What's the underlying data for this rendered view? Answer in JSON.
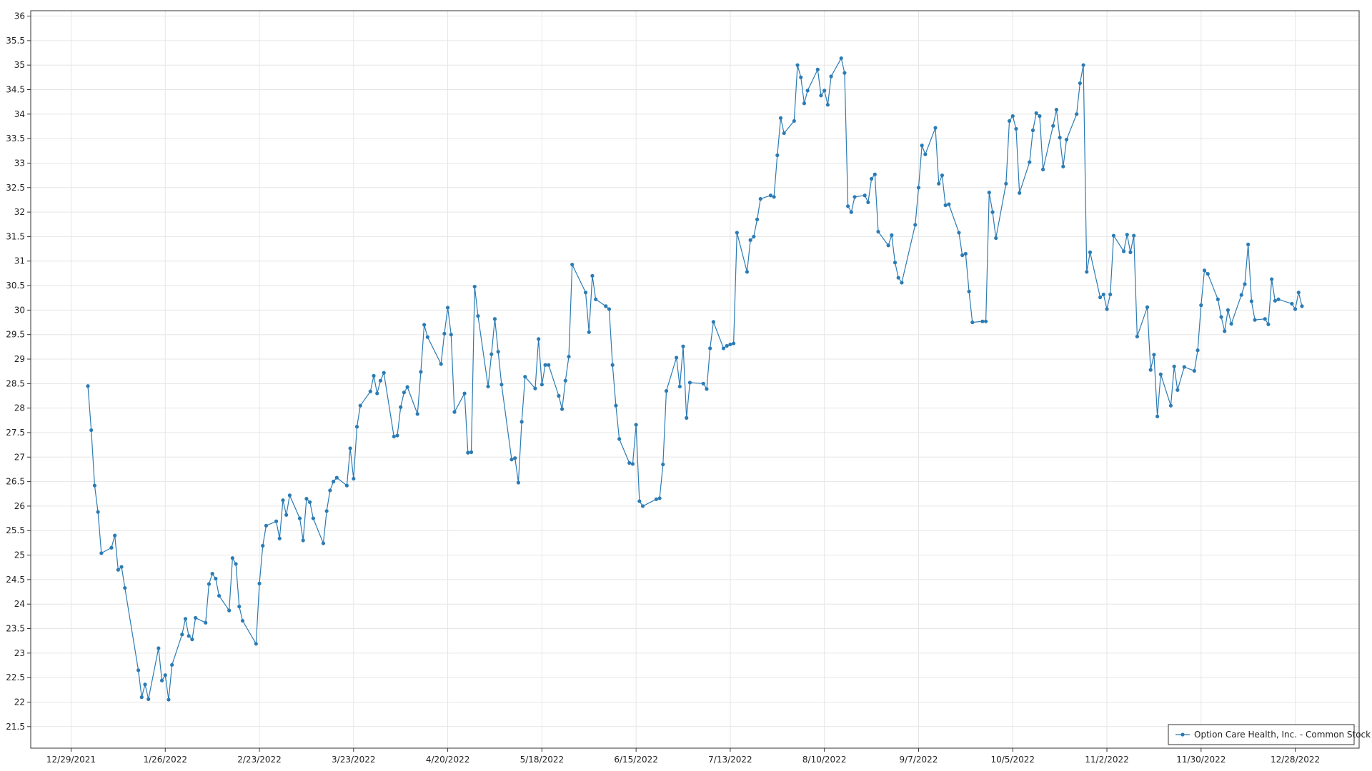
{
  "chart_data": {
    "type": "line",
    "x": [
      "2022-01-03",
      "2022-01-04",
      "2022-01-05",
      "2022-01-06",
      "2022-01-07",
      "2022-01-10",
      "2022-01-11",
      "2022-01-12",
      "2022-01-13",
      "2022-01-14",
      "2022-01-18",
      "2022-01-19",
      "2022-01-20",
      "2022-01-21",
      "2022-01-24",
      "2022-01-25",
      "2022-01-26",
      "2022-01-27",
      "2022-01-28",
      "2022-01-31",
      "2022-02-01",
      "2022-02-02",
      "2022-02-03",
      "2022-02-04",
      "2022-02-07",
      "2022-02-08",
      "2022-02-09",
      "2022-02-10",
      "2022-02-11",
      "2022-02-14",
      "2022-02-15",
      "2022-02-16",
      "2022-02-17",
      "2022-02-18",
      "2022-02-22",
      "2022-02-23",
      "2022-02-24",
      "2022-02-25",
      "2022-02-28",
      "2022-03-01",
      "2022-03-02",
      "2022-03-03",
      "2022-03-04",
      "2022-03-07",
      "2022-03-08",
      "2022-03-09",
      "2022-03-10",
      "2022-03-11",
      "2022-03-14",
      "2022-03-15",
      "2022-03-16",
      "2022-03-17",
      "2022-03-18",
      "2022-03-21",
      "2022-03-22",
      "2022-03-23",
      "2022-03-24",
      "2022-03-25",
      "2022-03-28",
      "2022-03-29",
      "2022-03-30",
      "2022-03-31",
      "2022-04-01",
      "2022-04-04",
      "2022-04-05",
      "2022-04-06",
      "2022-04-07",
      "2022-04-08",
      "2022-04-11",
      "2022-04-12",
      "2022-04-13",
      "2022-04-14",
      "2022-04-18",
      "2022-04-19",
      "2022-04-20",
      "2022-04-21",
      "2022-04-22",
      "2022-04-25",
      "2022-04-26",
      "2022-04-27",
      "2022-04-28",
      "2022-04-29",
      "2022-05-02",
      "2022-05-03",
      "2022-05-04",
      "2022-05-05",
      "2022-05-06",
      "2022-05-09",
      "2022-05-10",
      "2022-05-11",
      "2022-05-12",
      "2022-05-13",
      "2022-05-16",
      "2022-05-17",
      "2022-05-18",
      "2022-05-19",
      "2022-05-20",
      "2022-05-23",
      "2022-05-24",
      "2022-05-25",
      "2022-05-26",
      "2022-05-27",
      "2022-05-31",
      "2022-06-01",
      "2022-06-02",
      "2022-06-03",
      "2022-06-06",
      "2022-06-07",
      "2022-06-08",
      "2022-06-09",
      "2022-06-10",
      "2022-06-13",
      "2022-06-14",
      "2022-06-15",
      "2022-06-16",
      "2022-06-17",
      "2022-06-21",
      "2022-06-22",
      "2022-06-23",
      "2022-06-24",
      "2022-06-27",
      "2022-06-28",
      "2022-06-29",
      "2022-06-30",
      "2022-07-01",
      "2022-07-05",
      "2022-07-06",
      "2022-07-07",
      "2022-07-08",
      "2022-07-11",
      "2022-07-12",
      "2022-07-13",
      "2022-07-14",
      "2022-07-15",
      "2022-07-18",
      "2022-07-19",
      "2022-07-20",
      "2022-07-21",
      "2022-07-22",
      "2022-07-25",
      "2022-07-26",
      "2022-07-27",
      "2022-07-28",
      "2022-07-29",
      "2022-08-01",
      "2022-08-02",
      "2022-08-03",
      "2022-08-04",
      "2022-08-05",
      "2022-08-08",
      "2022-08-09",
      "2022-08-10",
      "2022-08-11",
      "2022-08-12",
      "2022-08-15",
      "2022-08-16",
      "2022-08-17",
      "2022-08-18",
      "2022-08-19",
      "2022-08-22",
      "2022-08-23",
      "2022-08-24",
      "2022-08-25",
      "2022-08-26",
      "2022-08-29",
      "2022-08-30",
      "2022-08-31",
      "2022-09-01",
      "2022-09-02",
      "2022-09-06",
      "2022-09-07",
      "2022-09-08",
      "2022-09-09",
      "2022-09-12",
      "2022-09-13",
      "2022-09-14",
      "2022-09-15",
      "2022-09-16",
      "2022-09-19",
      "2022-09-20",
      "2022-09-21",
      "2022-09-22",
      "2022-09-23",
      "2022-09-26",
      "2022-09-27",
      "2022-09-28",
      "2022-09-29",
      "2022-09-30",
      "2022-10-03",
      "2022-10-04",
      "2022-10-05",
      "2022-10-06",
      "2022-10-07",
      "2022-10-10",
      "2022-10-11",
      "2022-10-12",
      "2022-10-13",
      "2022-10-14",
      "2022-10-17",
      "2022-10-18",
      "2022-10-19",
      "2022-10-20",
      "2022-10-21",
      "2022-10-24",
      "2022-10-25",
      "2022-10-26",
      "2022-10-27",
      "2022-10-28",
      "2022-10-31",
      "2022-11-01",
      "2022-11-02",
      "2022-11-03",
      "2022-11-04",
      "2022-11-07",
      "2022-11-08",
      "2022-11-09",
      "2022-11-10",
      "2022-11-11",
      "2022-11-14",
      "2022-11-15",
      "2022-11-16",
      "2022-11-17",
      "2022-11-18",
      "2022-11-21",
      "2022-11-22",
      "2022-11-23",
      "2022-11-25",
      "2022-11-28",
      "2022-11-29",
      "2022-11-30",
      "2022-12-01",
      "2022-12-02",
      "2022-12-05",
      "2022-12-06",
      "2022-12-07",
      "2022-12-08",
      "2022-12-09",
      "2022-12-12",
      "2022-12-13",
      "2022-12-14",
      "2022-12-15",
      "2022-12-16",
      "2022-12-19",
      "2022-12-20",
      "2022-12-21",
      "2022-12-22",
      "2022-12-23",
      "2022-12-27",
      "2022-12-28",
      "2022-12-29",
      "2022-12-30"
    ],
    "series": [
      {
        "name": "Option Care Health, Inc. - Common Stock",
        "color": "#2b7bb4",
        "values": [
          28.45,
          27.55,
          26.42,
          25.88,
          25.04,
          25.15,
          25.4,
          24.7,
          24.76,
          24.33,
          22.65,
          22.1,
          22.36,
          22.06,
          23.1,
          22.44,
          22.55,
          22.05,
          22.76,
          23.38,
          23.7,
          23.35,
          23.28,
          23.72,
          23.62,
          24.41,
          24.62,
          24.52,
          24.17,
          23.87,
          24.94,
          24.82,
          23.95,
          23.66,
          23.19,
          24.42,
          25.19,
          25.6,
          25.69,
          25.34,
          26.12,
          25.82,
          26.22,
          25.75,
          25.3,
          26.15,
          26.08,
          25.75,
          25.24,
          25.9,
          26.32,
          26.5,
          26.58,
          26.42,
          27.18,
          26.56,
          27.62,
          28.05,
          28.34,
          28.66,
          28.3,
          28.56,
          28.72,
          27.42,
          27.44,
          28.02,
          28.32,
          28.43,
          27.88,
          28.74,
          29.7,
          29.45,
          28.9,
          29.52,
          30.05,
          29.5,
          27.92,
          28.3,
          27.09,
          27.1,
          30.48,
          29.88,
          28.44,
          29.1,
          29.82,
          29.15,
          28.48,
          26.95,
          26.98,
          26.48,
          27.72,
          28.64,
          28.4,
          29.41,
          28.48,
          28.88,
          28.88,
          28.25,
          27.98,
          28.56,
          29.05,
          30.93,
          30.36,
          29.55,
          30.7,
          30.22,
          30.08,
          30.02,
          28.88,
          28.05,
          27.37,
          26.88,
          26.86,
          27.66,
          26.1,
          26.0,
          26.14,
          26.16,
          26.85,
          28.35,
          29.03,
          28.44,
          29.26,
          27.8,
          28.52,
          28.5,
          28.39,
          29.22,
          29.76,
          29.22,
          29.27,
          29.3,
          29.32,
          31.58,
          30.78,
          31.43,
          31.5,
          31.85,
          32.27,
          32.34,
          32.31,
          33.16,
          33.92,
          33.61,
          33.86,
          35.0,
          34.75,
          34.22,
          34.48,
          34.91,
          34.38,
          34.48,
          34.19,
          34.77,
          35.14,
          34.84,
          32.12,
          32.0,
          32.31,
          32.34,
          32.2,
          32.68,
          32.77,
          31.6,
          31.32,
          31.53,
          30.97,
          30.66,
          30.56,
          31.74,
          32.5,
          33.36,
          33.18,
          33.72,
          32.58,
          32.75,
          32.14,
          32.16,
          31.58,
          31.12,
          31.15,
          30.38,
          29.75,
          29.77,
          29.77,
          32.4,
          32.0,
          31.47,
          32.58,
          33.86,
          33.96,
          33.7,
          32.39,
          33.02,
          33.67,
          34.02,
          33.96,
          32.87,
          33.76,
          34.09,
          33.52,
          32.93,
          33.48,
          34.0,
          34.63,
          35.0,
          30.78,
          31.18,
          30.26,
          30.32,
          30.02,
          30.32,
          31.52,
          31.2,
          31.54,
          31.18,
          31.52,
          29.46,
          30.06,
          28.78,
          29.09,
          27.83,
          28.69,
          28.05,
          28.85,
          28.37,
          28.84,
          28.76,
          29.18,
          30.1,
          30.81,
          30.74,
          30.22,
          29.86,
          29.57,
          30.0,
          29.72,
          30.31,
          30.53,
          31.34,
          30.18,
          29.8,
          29.82,
          29.71,
          30.63,
          30.19,
          30.22,
          30.13,
          30.02,
          30.36,
          30.08
        ]
      }
    ],
    "xlim": [
      "2021-12-17",
      "2023-01-16"
    ],
    "xticks": [
      {
        "value": "2021-12-29",
        "label": "12/29/2021"
      },
      {
        "value": "2022-01-26",
        "label": "1/26/2022"
      },
      {
        "value": "2022-02-23",
        "label": "2/23/2022"
      },
      {
        "value": "2022-03-23",
        "label": "3/23/2022"
      },
      {
        "value": "2022-04-20",
        "label": "4/20/2022"
      },
      {
        "value": "2022-05-18",
        "label": "5/18/2022"
      },
      {
        "value": "2022-06-15",
        "label": "6/15/2022"
      },
      {
        "value": "2022-07-13",
        "label": "7/13/2022"
      },
      {
        "value": "2022-08-10",
        "label": "8/10/2022"
      },
      {
        "value": "2022-09-07",
        "label": "9/7/2022"
      },
      {
        "value": "2022-10-05",
        "label": "10/5/2022"
      },
      {
        "value": "2022-11-02",
        "label": "11/2/2022"
      },
      {
        "value": "2022-11-30",
        "label": "11/30/2022"
      },
      {
        "value": "2022-12-28",
        "label": "12/28/2022"
      }
    ],
    "ylim": [
      21.06,
      36.11
    ],
    "yticks": [
      21.5,
      22,
      22.5,
      23,
      23.5,
      24,
      24.5,
      25,
      25.5,
      26,
      26.5,
      27,
      27.5,
      28,
      28.5,
      29,
      29.5,
      30,
      30.5,
      31,
      31.5,
      32,
      32.5,
      33,
      33.5,
      34,
      34.5,
      35,
      35.5,
      36
    ],
    "grid": true,
    "legend": "lower right"
  }
}
